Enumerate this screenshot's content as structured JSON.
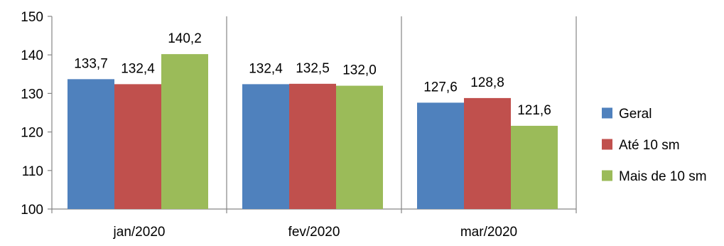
{
  "chart_data": {
    "type": "bar",
    "categories": [
      "jan/2020",
      "fev/2020",
      "mar/2020"
    ],
    "series": [
      {
        "name": "Geral",
        "values": [
          133.7,
          132.4,
          127.6
        ],
        "labels": [
          "133,7",
          "132,4",
          "127,6"
        ],
        "color": "#4f81bd"
      },
      {
        "name": "Até 10 sm",
        "values": [
          132.4,
          132.5,
          128.8
        ],
        "labels": [
          "132,4",
          "132,5",
          "128,8"
        ],
        "color": "#c0504d"
      },
      {
        "name": "Mais de 10 sm",
        "values": [
          140.2,
          132.0,
          121.6
        ],
        "labels": [
          "140,2",
          "132,0",
          "121,6"
        ],
        "color": "#9bbb59"
      }
    ],
    "y_ticks": [
      "100",
      "110",
      "120",
      "130",
      "140",
      "150"
    ],
    "ylim": [
      100,
      150
    ],
    "grid": false,
    "legend": "right",
    "title": "",
    "xlabel": "",
    "ylabel": ""
  }
}
